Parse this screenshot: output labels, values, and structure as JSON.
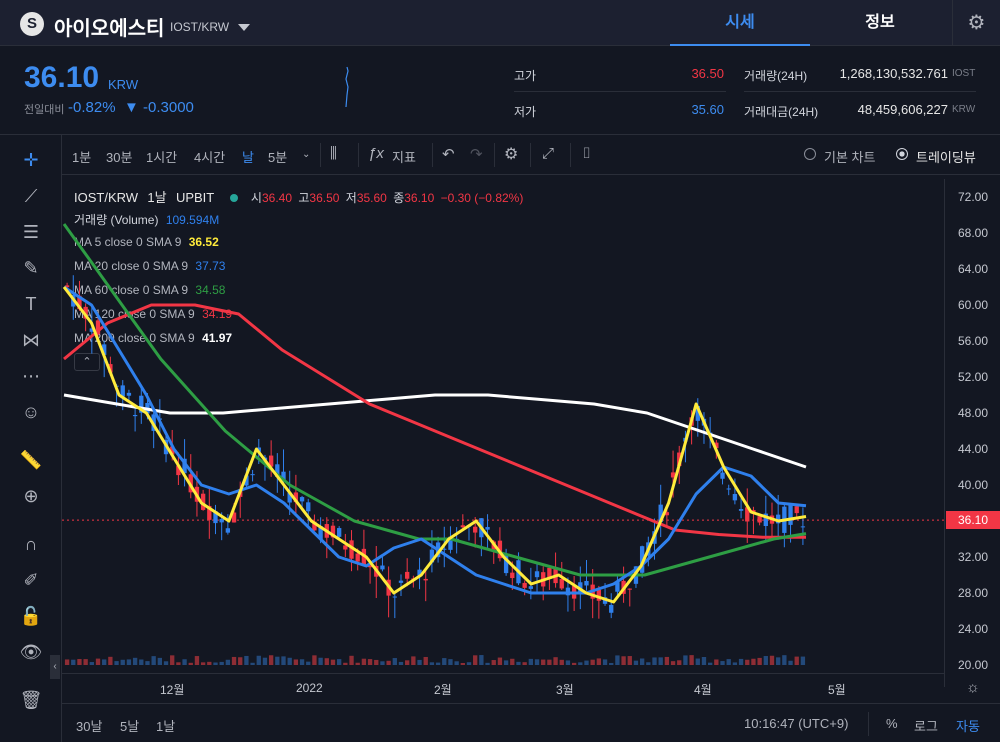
{
  "header": {
    "coin_name": "아이오에스티",
    "pair": "IOST/KRW",
    "tabs": [
      "시세",
      "정보"
    ]
  },
  "summary": {
    "price": "36.10",
    "unit": "KRW",
    "change_label": "전일대비",
    "change_pct": "-0.82%",
    "change_abs": "▼ -0.3000",
    "high_label": "고가",
    "high_value": "36.50",
    "low_label": "저가",
    "low_value": "35.60",
    "vol_label": "거래량(24H)",
    "vol_value": "1,268,130,532.761",
    "vol_unit": "IOST",
    "amount_label": "거래대금(24H)",
    "amount_value": "48,459,606,227",
    "amount_unit": "KRW"
  },
  "toolbar": {
    "intervals": [
      "1분",
      "30분",
      "1시간",
      "4시간",
      "날",
      "5분"
    ],
    "indicators_label": "지표",
    "basic_chart": "기본 차트",
    "trading_view": "트레이딩뷰"
  },
  "legend": {
    "symbol": "IOST/KRW",
    "interval": "1날",
    "exchange": "UPBIT",
    "ohlc": [
      {
        "label": "시",
        "value": "36.40"
      },
      {
        "label": "고",
        "value": "36.50"
      },
      {
        "label": "저",
        "value": "35.60"
      },
      {
        "label": "종",
        "value": "36.10"
      }
    ],
    "change": "−0.30 (−0.82%)",
    "volume_label": "거래량 (Volume)",
    "volume_value": "109.594M",
    "ma": [
      {
        "label": "MA 5 close 0 SMA 9",
        "value": "36.52",
        "color": "#ffeb3b"
      },
      {
        "label": "MA 20 close 0 SMA 9",
        "value": "37.73",
        "color": "#2f80ed"
      },
      {
        "label": "MA 60 close 0 SMA 9",
        "value": "34.58",
        "color": "#2e9e44"
      },
      {
        "label": "MA 120 close 0 SMA 9",
        "value": "34.19",
        "color": "#f23645"
      },
      {
        "label": "MA 200 close 0 SMA 9",
        "value": "41.97",
        "color": "#ffffff"
      }
    ]
  },
  "chart_data": {
    "type": "line",
    "y_ticks": [
      "72.00",
      "68.00",
      "64.00",
      "60.00",
      "56.00",
      "52.00",
      "48.00",
      "44.00",
      "40.00",
      "36.00",
      "32.00",
      "28.00",
      "24.00",
      "20.00"
    ],
    "x_ticks": [
      "12월",
      "2022",
      "2월",
      "3월",
      "4월",
      "5월"
    ],
    "last_price": "36.10",
    "ylim": [
      20,
      74
    ],
    "series": [
      {
        "name": "MA 5 close 0 SMA 9",
        "color": "#ffeb3b",
        "values": [
          62,
          58,
          50,
          48,
          43,
          38,
          36,
          44,
          40,
          36,
          34,
          32,
          28,
          30,
          34,
          36,
          32,
          29,
          30,
          28,
          27,
          31,
          38,
          49,
          42,
          37,
          36,
          36.5
        ]
      },
      {
        "name": "MA 20 close 0 SMA 9",
        "color": "#2f80ed",
        "values": [
          62,
          60,
          55,
          50,
          44,
          40,
          39,
          40,
          38,
          35,
          32,
          31,
          33,
          34,
          32,
          30,
          29,
          28,
          28,
          28,
          29,
          31,
          34,
          39,
          42,
          41,
          38,
          37.7
        ]
      },
      {
        "name": "MA 60 close 0 SMA 9",
        "color": "#2e9e44",
        "values": [
          69,
          64,
          59,
          54,
          50,
          46,
          43,
          40,
          38,
          36,
          35,
          34,
          34,
          33,
          32,
          31,
          30,
          30,
          30,
          31,
          32,
          33,
          34,
          34.6
        ]
      },
      {
        "name": "MA 120 close 0 SMA 9",
        "color": "#f23645",
        "values": [
          54,
          58,
          60,
          60,
          59,
          55,
          52,
          49,
          47,
          45,
          43,
          41,
          39,
          37,
          35,
          34.5,
          34.2,
          34.2
        ]
      },
      {
        "name": "MA 200 close 0 SMA 9",
        "color": "#ffffff",
        "values": [
          50,
          49,
          48,
          48,
          48.5,
          49,
          49.5,
          50,
          50,
          49.5,
          49,
          48,
          46,
          44,
          42
        ]
      }
    ]
  },
  "bottom": {
    "ranges": [
      "30날",
      "5날",
      "1날"
    ],
    "time": "10:16:47 (UTC+9)",
    "pct": "%",
    "log": "로그",
    "auto": "자동"
  }
}
